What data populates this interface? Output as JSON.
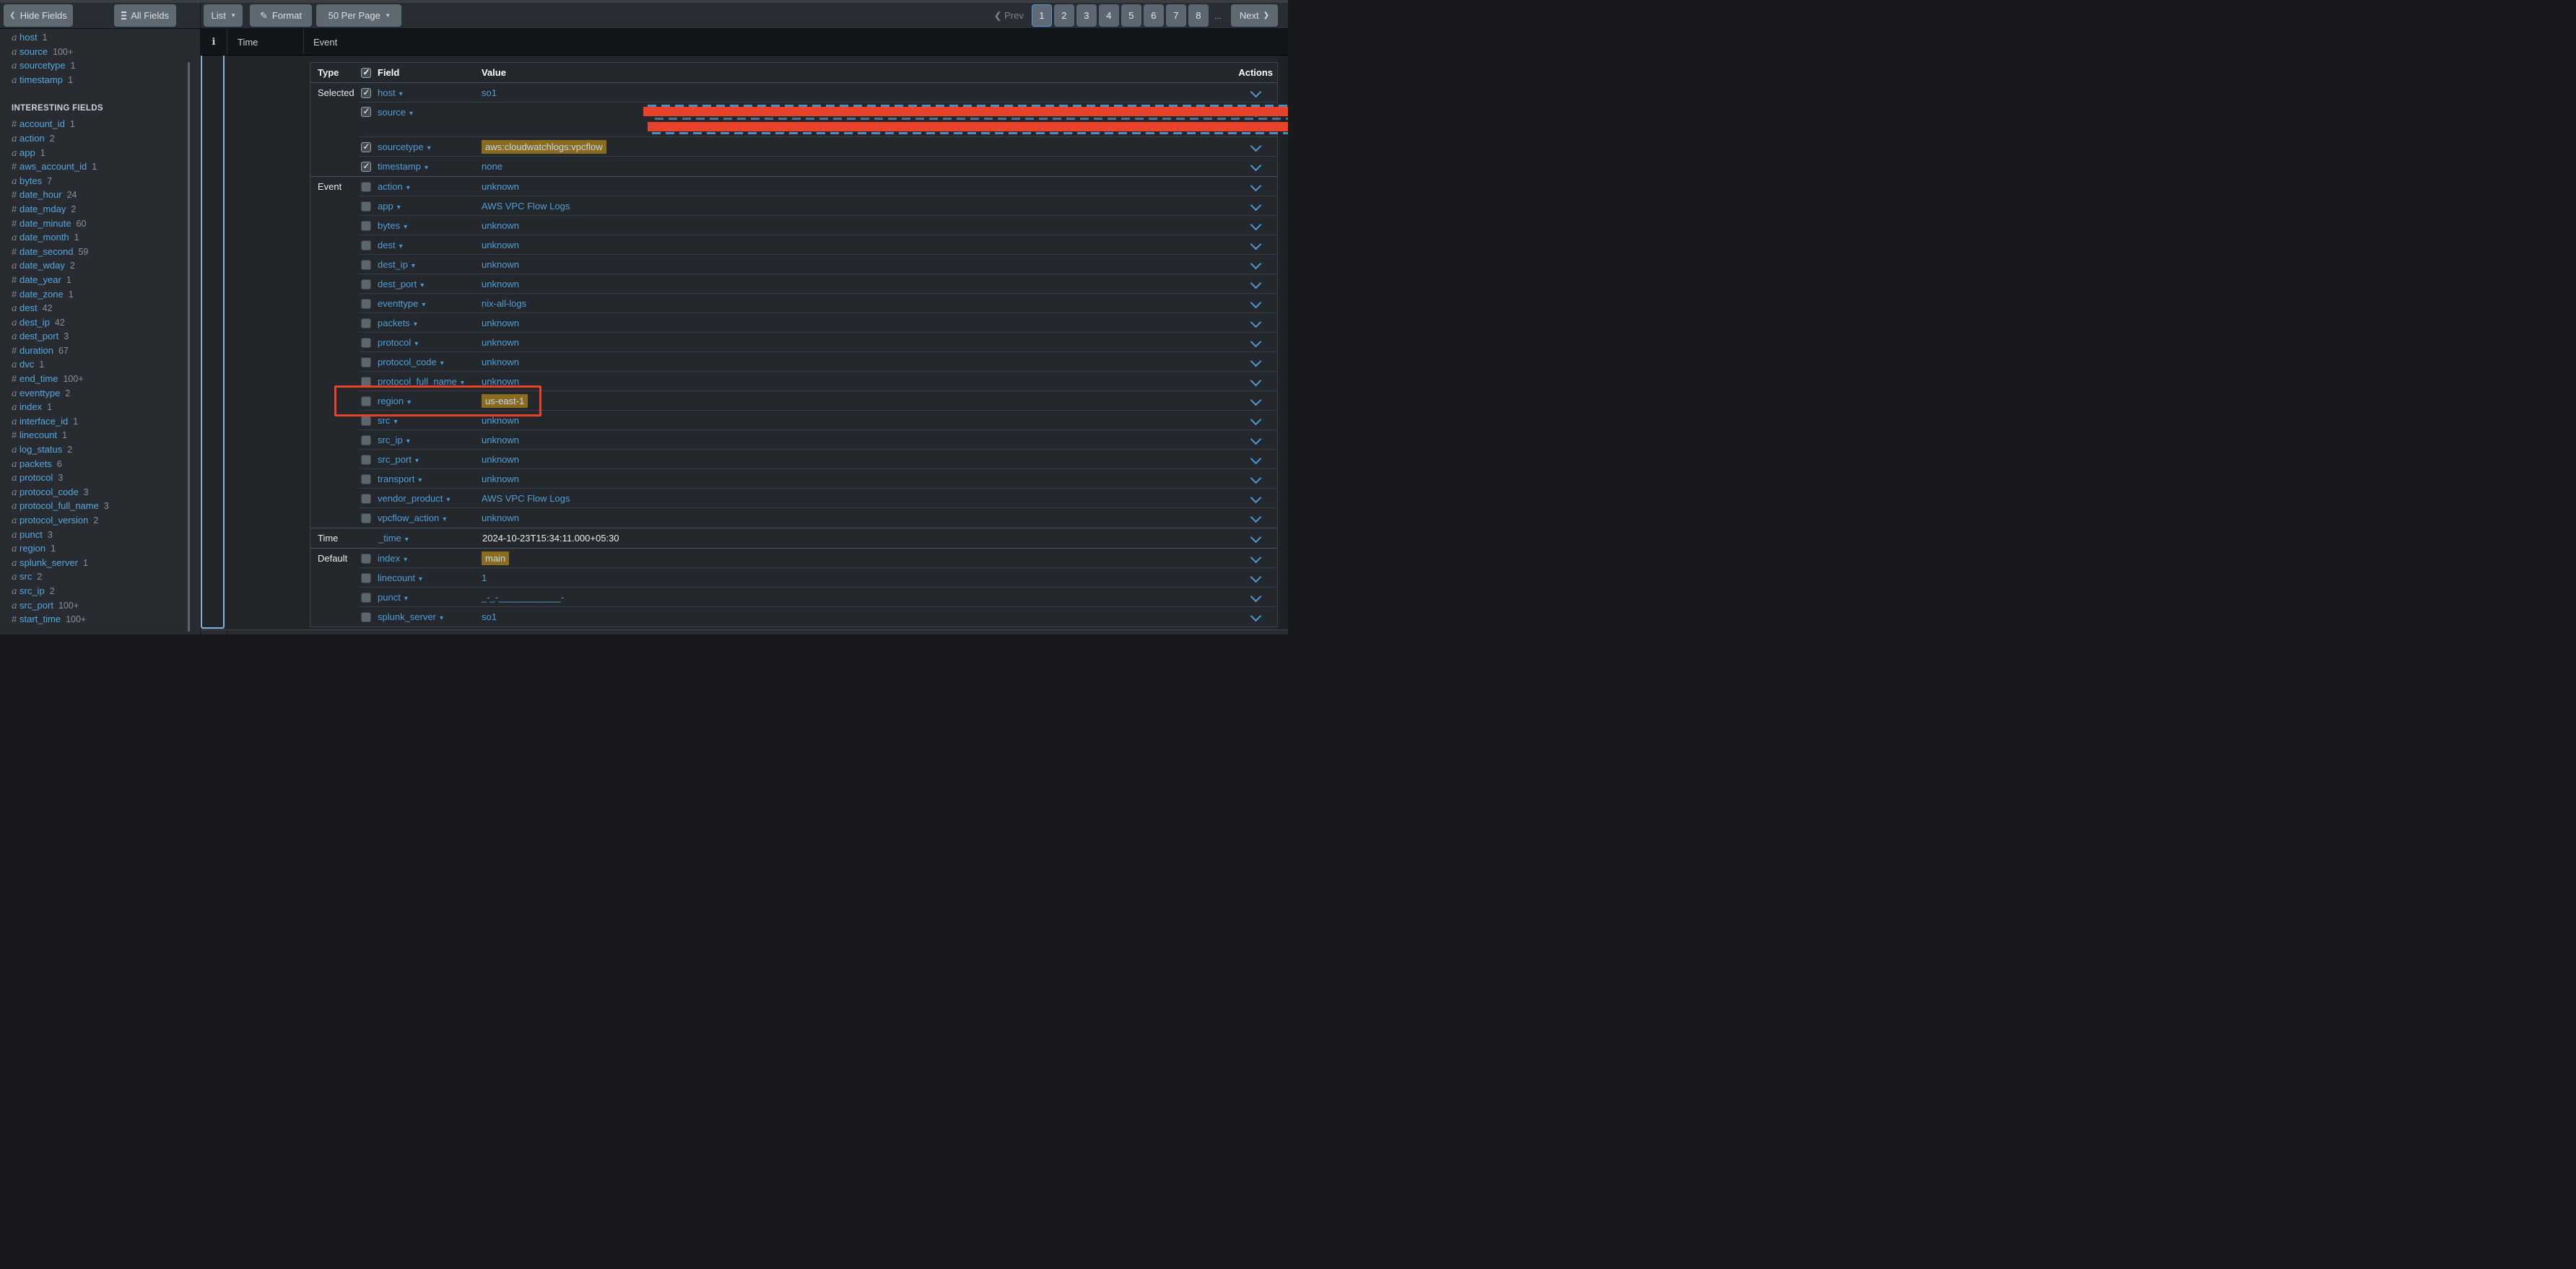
{
  "toolbar": {
    "hide_fields_label": "Hide Fields",
    "all_fields_label": "All Fields",
    "list_label": "List",
    "format_label": "Format",
    "per_page_label": "50 Per Page",
    "pagination": {
      "prev_label": "Prev",
      "pages": [
        "1",
        "2",
        "3",
        "4",
        "5",
        "6",
        "7",
        "8"
      ],
      "current": "1",
      "ellipsis": "...",
      "next_label": "Next"
    }
  },
  "sidebar": {
    "selected_fields": [
      {
        "prefix": "a",
        "name": "host",
        "count": "1"
      },
      {
        "prefix": "a",
        "name": "source",
        "count": "100+"
      },
      {
        "prefix": "a",
        "name": "sourcetype",
        "count": "1"
      },
      {
        "prefix": "a",
        "name": "timestamp",
        "count": "1"
      }
    ],
    "section_title": "INTERESTING FIELDS",
    "interesting_fields": [
      {
        "prefix": "#",
        "name": "account_id",
        "count": "1"
      },
      {
        "prefix": "a",
        "name": "action",
        "count": "2"
      },
      {
        "prefix": "a",
        "name": "app",
        "count": "1"
      },
      {
        "prefix": "#",
        "name": "aws_account_id",
        "count": "1"
      },
      {
        "prefix": "a",
        "name": "bytes",
        "count": "7"
      },
      {
        "prefix": "#",
        "name": "date_hour",
        "count": "24"
      },
      {
        "prefix": "#",
        "name": "date_mday",
        "count": "2"
      },
      {
        "prefix": "#",
        "name": "date_minute",
        "count": "60"
      },
      {
        "prefix": "a",
        "name": "date_month",
        "count": "1"
      },
      {
        "prefix": "#",
        "name": "date_second",
        "count": "59"
      },
      {
        "prefix": "a",
        "name": "date_wday",
        "count": "2"
      },
      {
        "prefix": "#",
        "name": "date_year",
        "count": "1"
      },
      {
        "prefix": "#",
        "name": "date_zone",
        "count": "1"
      },
      {
        "prefix": "a",
        "name": "dest",
        "count": "42"
      },
      {
        "prefix": "a",
        "name": "dest_ip",
        "count": "42"
      },
      {
        "prefix": "a",
        "name": "dest_port",
        "count": "3"
      },
      {
        "prefix": "#",
        "name": "duration",
        "count": "67"
      },
      {
        "prefix": "a",
        "name": "dvc",
        "count": "1"
      },
      {
        "prefix": "#",
        "name": "end_time",
        "count": "100+"
      },
      {
        "prefix": "a",
        "name": "eventtype",
        "count": "2"
      },
      {
        "prefix": "a",
        "name": "index",
        "count": "1"
      },
      {
        "prefix": "a",
        "name": "interface_id",
        "count": "1"
      },
      {
        "prefix": "#",
        "name": "linecount",
        "count": "1"
      },
      {
        "prefix": "a",
        "name": "log_status",
        "count": "2"
      },
      {
        "prefix": "a",
        "name": "packets",
        "count": "6"
      },
      {
        "prefix": "a",
        "name": "protocol",
        "count": "3"
      },
      {
        "prefix": "a",
        "name": "protocol_code",
        "count": "3"
      },
      {
        "prefix": "a",
        "name": "protocol_full_name",
        "count": "3"
      },
      {
        "prefix": "a",
        "name": "protocol_version",
        "count": "2"
      },
      {
        "prefix": "a",
        "name": "punct",
        "count": "3"
      },
      {
        "prefix": "a",
        "name": "region",
        "count": "1"
      },
      {
        "prefix": "a",
        "name": "splunk_server",
        "count": "1"
      },
      {
        "prefix": "a",
        "name": "src",
        "count": "2"
      },
      {
        "prefix": "a",
        "name": "src_ip",
        "count": "2"
      },
      {
        "prefix": "a",
        "name": "src_port",
        "count": "100+"
      },
      {
        "prefix": "#",
        "name": "start_time",
        "count": "100+"
      }
    ]
  },
  "event_list": {
    "info_col": "i",
    "time_col": "Time",
    "event_col": "Event"
  },
  "event_table": {
    "columns": {
      "type": "Type",
      "field": "Field",
      "value": "Value",
      "actions": "Actions"
    },
    "sections": [
      {
        "type": "Selected",
        "rows": [
          {
            "field": "host",
            "value": "so1",
            "checked": true
          },
          {
            "field": "source",
            "value": "",
            "checked": true,
            "redacted": true
          },
          {
            "field": "sourcetype",
            "value": "aws:cloudwatchlogs:vpcflow",
            "checked": true,
            "highlight": true
          },
          {
            "field": "timestamp",
            "value": "none",
            "checked": true
          }
        ]
      },
      {
        "type": "Event",
        "rows": [
          {
            "field": "action",
            "value": "unknown",
            "checked": false
          },
          {
            "field": "app",
            "value": "AWS VPC Flow Logs",
            "checked": false
          },
          {
            "field": "bytes",
            "value": "unknown",
            "checked": false
          },
          {
            "field": "dest",
            "value": "unknown",
            "checked": false
          },
          {
            "field": "dest_ip",
            "value": "unknown",
            "checked": false
          },
          {
            "field": "dest_port",
            "value": "unknown",
            "checked": false
          },
          {
            "field": "eventtype",
            "value": "nix-all-logs",
            "checked": false
          },
          {
            "field": "packets",
            "value": "unknown",
            "checked": false
          },
          {
            "field": "protocol",
            "value": "unknown",
            "checked": false
          },
          {
            "field": "protocol_code",
            "value": "unknown",
            "checked": false
          },
          {
            "field": "protocol_full_name",
            "value": "unknown",
            "checked": false
          },
          {
            "field": "region",
            "value": "us-east-1",
            "checked": false,
            "highlight": true,
            "annotated": true
          },
          {
            "field": "src",
            "value": "unknown",
            "checked": false
          },
          {
            "field": "src_ip",
            "value": "unknown",
            "checked": false
          },
          {
            "field": "src_port",
            "value": "unknown",
            "checked": false
          },
          {
            "field": "transport",
            "value": "unknown",
            "checked": false
          },
          {
            "field": "vendor_product",
            "value": "AWS VPC Flow Logs",
            "checked": false
          },
          {
            "field": "vpcflow_action",
            "value": "unknown",
            "checked": false
          }
        ]
      },
      {
        "type": "Time",
        "rows": [
          {
            "field": "_time",
            "value": "2024-10-23T15:34:11.000+05:30",
            "white_value": true
          }
        ]
      },
      {
        "type": "Default",
        "rows": [
          {
            "field": "index",
            "value": "main",
            "checked": false,
            "highlight": true
          },
          {
            "field": "linecount",
            "value": "1",
            "checked": false
          },
          {
            "field": "punct",
            "value": "_-_-____________-",
            "checked": false
          },
          {
            "field": "splunk_server",
            "value": "so1",
            "checked": false
          }
        ]
      }
    ]
  },
  "annotations": {
    "color": "#e8432a",
    "source_value_redacted": true,
    "region_row_boxed": true
  },
  "colors": {
    "accent_blue": "#4f9fd7",
    "highlight_olive": "#8a6b1f",
    "annotation_red": "#e8432a",
    "expanded_rail_blue": "#84b4d9"
  }
}
